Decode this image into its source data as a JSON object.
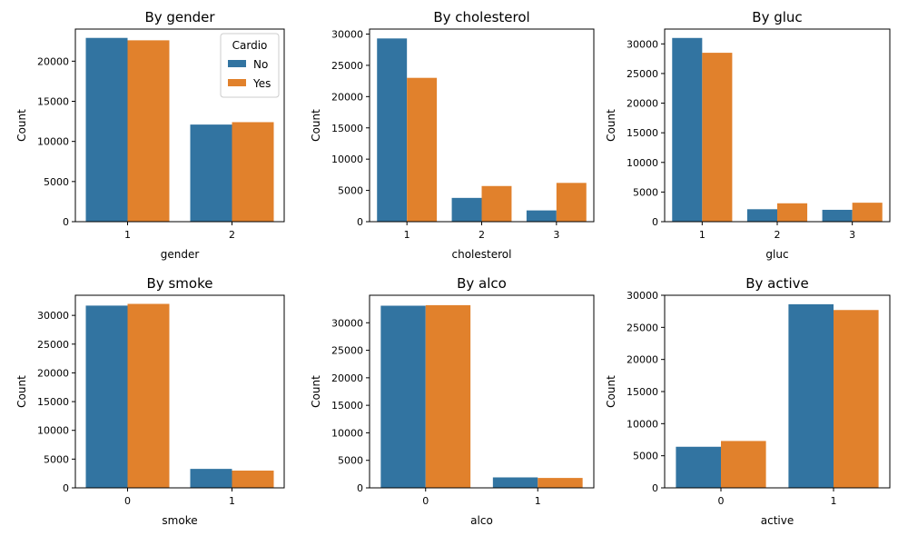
{
  "colors": {
    "No": "#3274a1",
    "Yes": "#e1812c"
  },
  "chart_data": [
    {
      "type": "bar",
      "title": "By gender",
      "xlabel": "gender",
      "ylabel": "Count",
      "categories": [
        "1",
        "2"
      ],
      "ylim": [
        0,
        24000
      ],
      "yticks": [
        0,
        5000,
        10000,
        15000,
        20000
      ],
      "series": [
        {
          "name": "No",
          "values": [
            22900,
            12100
          ]
        },
        {
          "name": "Yes",
          "values": [
            22600,
            12400
          ]
        }
      ],
      "legend": {
        "title": "Cardio",
        "placement": "top-right"
      }
    },
    {
      "type": "bar",
      "title": "By cholesterol",
      "xlabel": "cholesterol",
      "ylabel": "Count",
      "categories": [
        "1",
        "2",
        "3"
      ],
      "ylim": [
        0,
        30800
      ],
      "yticks": [
        0,
        5000,
        10000,
        15000,
        20000,
        25000,
        30000
      ],
      "series": [
        {
          "name": "No",
          "values": [
            29300,
            3800,
            1800
          ]
        },
        {
          "name": "Yes",
          "values": [
            23000,
            5700,
            6200
          ]
        }
      ]
    },
    {
      "type": "bar",
      "title": "By gluc",
      "xlabel": "gluc",
      "ylabel": "Count",
      "categories": [
        "1",
        "2",
        "3"
      ],
      "ylim": [
        0,
        32500
      ],
      "yticks": [
        0,
        5000,
        10000,
        15000,
        20000,
        25000,
        30000
      ],
      "series": [
        {
          "name": "No",
          "values": [
            31000,
            2100,
            2000
          ]
        },
        {
          "name": "Yes",
          "values": [
            28500,
            3100,
            3200
          ]
        }
      ]
    },
    {
      "type": "bar",
      "title": "By smoke",
      "xlabel": "smoke",
      "ylabel": "Count",
      "categories": [
        "0",
        "1"
      ],
      "ylim": [
        0,
        33500
      ],
      "yticks": [
        0,
        5000,
        10000,
        15000,
        20000,
        25000,
        30000
      ],
      "series": [
        {
          "name": "No",
          "values": [
            31700,
            3300
          ]
        },
        {
          "name": "Yes",
          "values": [
            32000,
            3000
          ]
        }
      ]
    },
    {
      "type": "bar",
      "title": "By alco",
      "xlabel": "alco",
      "ylabel": "Count",
      "categories": [
        "0",
        "1"
      ],
      "ylim": [
        0,
        35000
      ],
      "yticks": [
        0,
        5000,
        10000,
        15000,
        20000,
        25000,
        30000
      ],
      "series": [
        {
          "name": "No",
          "values": [
            33100,
            1900
          ]
        },
        {
          "name": "Yes",
          "values": [
            33200,
            1800
          ]
        }
      ]
    },
    {
      "type": "bar",
      "title": "By active",
      "xlabel": "active",
      "ylabel": "Count",
      "categories": [
        "0",
        "1"
      ],
      "ylim": [
        0,
        30000
      ],
      "yticks": [
        0,
        5000,
        10000,
        15000,
        20000,
        25000,
        30000
      ],
      "series": [
        {
          "name": "No",
          "values": [
            6400,
            28600
          ]
        },
        {
          "name": "Yes",
          "values": [
            7300,
            27700
          ]
        }
      ]
    }
  ]
}
